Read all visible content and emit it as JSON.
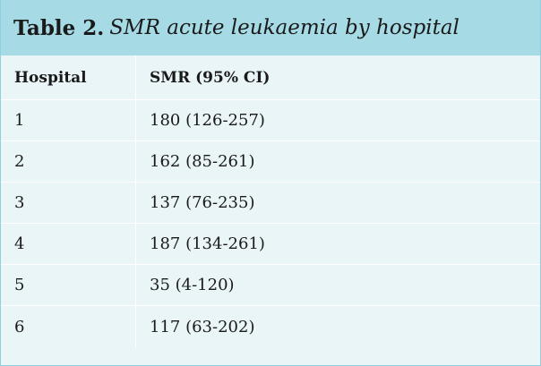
{
  "table": {
    "label": "Table 2.",
    "title": "SMR acute leukaemia by hospital",
    "columns": [
      "Hospital",
      "SMR (95% CI)"
    ],
    "rows": [
      {
        "hospital": "1",
        "smr": "180 (126-257)"
      },
      {
        "hospital": "2",
        "smr": "162 (85-261)"
      },
      {
        "hospital": "3",
        "smr": "137 (76-235)"
      },
      {
        "hospital": "4",
        "smr": "187 (134-261)"
      },
      {
        "hospital": "5",
        "smr": "35 (4-120)"
      },
      {
        "hospital": "6",
        "smr": "117 (63-202)"
      }
    ],
    "colors": {
      "title_bar": "#a6dbe6",
      "body": "#eaf5f8",
      "border": "#8fd0de"
    }
  }
}
